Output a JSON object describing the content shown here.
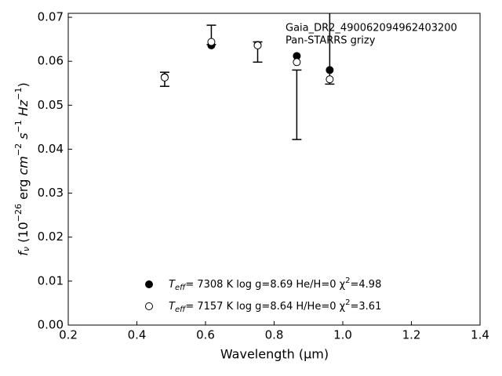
{
  "chart_data": {
    "type": "scatter",
    "annotations": [
      "Gaia_DR2_490062094962403200",
      "Pan-STARRS grizy"
    ],
    "xlabel": "Wavelength (μm)",
    "ylabel": [
      "f",
      "ν",
      " (10",
      "−26",
      " erg ",
      "cm",
      "−2",
      " s",
      "−1",
      " Hz",
      "−1",
      ")"
    ],
    "x": [
      0.481,
      0.617,
      0.752,
      0.866,
      0.962
    ],
    "errorbars": {
      "color": "#000000",
      "values": [
        0.0559,
        0.066,
        0.0621,
        0.0501,
        0.07
      ],
      "errors": [
        0.0016,
        0.0022,
        0.0023,
        0.0079,
        0.0152
      ]
    },
    "series": [
      {
        "name": "Teff=  7308 K  log g=8.69  He/H=0  χ2=4.98",
        "color": "#000000",
        "filled": true,
        "values": [
          0.0564,
          0.0636,
          0.0637,
          0.0612,
          0.058
        ]
      },
      {
        "name": "Teff=  7157 K  log g=8.64  H/He=0  χ2=3.61",
        "color": "#000000",
        "filled": false,
        "values": [
          0.0563,
          0.0644,
          0.0636,
          0.0598,
          0.0559
        ]
      }
    ],
    "xlim": [
      0.2,
      1.4
    ],
    "xticks": [
      0.2,
      0.4,
      0.6,
      0.8,
      {
        "value": 1,
        "label": "1.0"
      },
      1.2,
      1.4
    ],
    "ylim": [
      0,
      0.0709
    ],
    "yticks": [
      {
        "value": 0,
        "label": "0.00"
      },
      0.01,
      0.02,
      0.03,
      0.04,
      0.05,
      0.06,
      0.07
    ]
  }
}
